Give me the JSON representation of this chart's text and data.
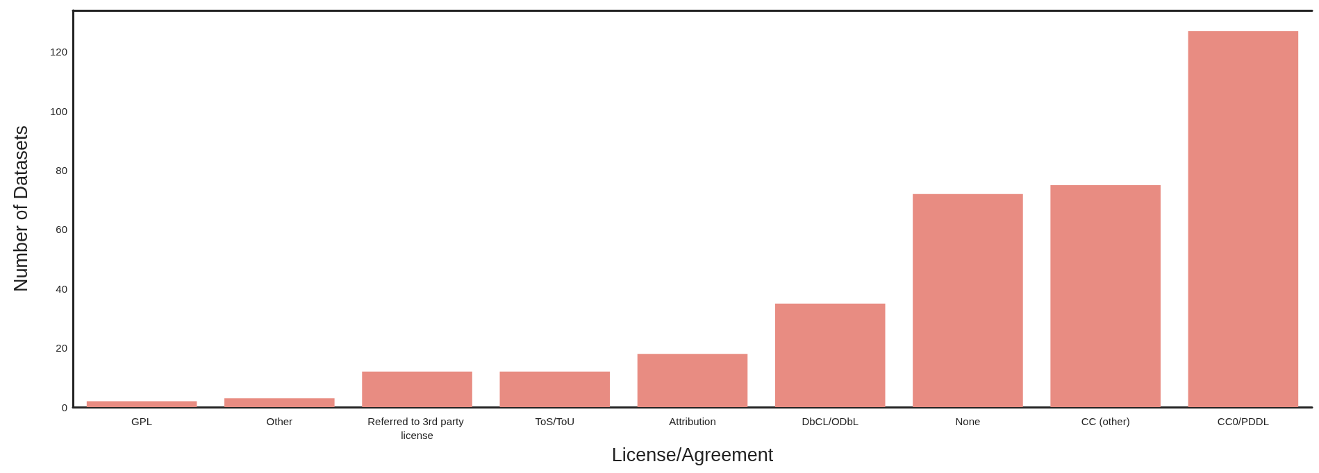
{
  "chart_data": {
    "type": "bar",
    "xlabel": "License/Agreement",
    "ylabel": "Number of Datasets",
    "categories": [
      "GPL",
      "Other",
      "Referred to 3rd party license",
      "ToS/ToU",
      "Attribution",
      "DbCL/ODbL",
      "None",
      "CC (other)",
      "CC0/PDDL"
    ],
    "values": [
      2,
      3,
      12,
      12,
      18,
      35,
      72,
      75,
      127
    ],
    "color": "#e88c82",
    "ylim": [
      0,
      134
    ],
    "yticks": [
      0,
      20,
      40,
      60,
      80,
      100,
      120
    ],
    "grid": false
  }
}
